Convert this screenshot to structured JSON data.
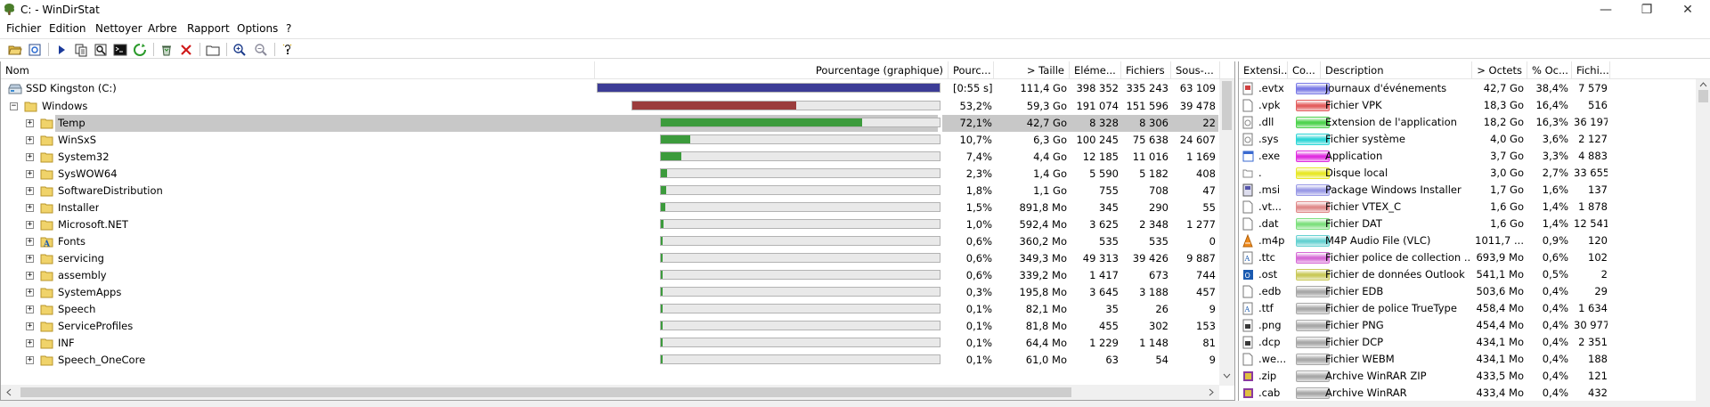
{
  "window": {
    "title": "C: - WinDirStat",
    "minimize_glyph": "—",
    "maximize_glyph": "❐",
    "close_glyph": "✕"
  },
  "menu": [
    "Fichier",
    "Edition",
    "Nettoyer",
    "Arbre",
    "Rapport",
    "Options",
    "?"
  ],
  "toolbar_icons": [
    "open-icon",
    "refresh-icon",
    "play-icon",
    "copy-icon",
    "explorer-icon",
    "command-prompt-icon",
    "refresh-selected-icon",
    "recycle-icon",
    "delete-icon",
    "new-folder-icon",
    "zoom-in-icon",
    "zoom-out-icon",
    "help-icon"
  ],
  "tree": {
    "headers": [
      "Nom",
      "Pourcentage (graphique)",
      "Pourc...",
      "> Taille",
      "Eléme...",
      "Fichiers",
      "Sous-..."
    ],
    "rows": [
      {
        "name": "SSD Kingston (C:)",
        "type": "drive",
        "level": 0,
        "fraction": 1.0,
        "fill": "#3c3c96",
        "pct": "[0:55 s]",
        "size": "111,4 Go",
        "items": "398 352",
        "files": "335 243",
        "subdirs": "63 109"
      },
      {
        "name": "Windows",
        "type": "folder",
        "level": 1,
        "fraction": 0.532,
        "fill": "#9b3c3c",
        "pct": "53,2%",
        "size": "59,3 Go",
        "items": "191 074",
        "files": "151 596",
        "subdirs": "39 478"
      },
      {
        "name": "Temp",
        "type": "folder",
        "level": 2,
        "fraction": 0.721,
        "fill": "#3c9b3c",
        "pct": "72,1%",
        "size": "42,7 Go",
        "items": "8 328",
        "files": "8 306",
        "subdirs": "22",
        "selected": true
      },
      {
        "name": "WinSxS",
        "type": "folder",
        "level": 2,
        "fraction": 0.107,
        "fill": "#3c9b3c",
        "pct": "10,7%",
        "size": "6,3 Go",
        "items": "100 245",
        "files": "75 638",
        "subdirs": "24 607"
      },
      {
        "name": "System32",
        "type": "folder",
        "level": 2,
        "fraction": 0.074,
        "fill": "#3c9b3c",
        "pct": "7,4%",
        "size": "4,4 Go",
        "items": "12 185",
        "files": "11 016",
        "subdirs": "1 169"
      },
      {
        "name": "SysWOW64",
        "type": "folder",
        "level": 2,
        "fraction": 0.023,
        "fill": "#3c9b3c",
        "pct": "2,3%",
        "size": "1,4 Go",
        "items": "5 590",
        "files": "5 182",
        "subdirs": "408"
      },
      {
        "name": "SoftwareDistribution",
        "type": "folder",
        "level": 2,
        "fraction": 0.018,
        "fill": "#3c9b3c",
        "pct": "1,8%",
        "size": "1,1 Go",
        "items": "755",
        "files": "708",
        "subdirs": "47"
      },
      {
        "name": "Installer",
        "type": "folder",
        "level": 2,
        "fraction": 0.015,
        "fill": "#3c9b3c",
        "pct": "1,5%",
        "size": "891,8 Mo",
        "items": "345",
        "files": "290",
        "subdirs": "55"
      },
      {
        "name": "Microsoft.NET",
        "type": "folder",
        "level": 2,
        "fraction": 0.01,
        "fill": "#3c9b3c",
        "pct": "1,0%",
        "size": "592,4 Mo",
        "items": "3 625",
        "files": "2 348",
        "subdirs": "1 277"
      },
      {
        "name": "Fonts",
        "type": "fonts",
        "level": 2,
        "fraction": 0.006,
        "fill": "#3c9b3c",
        "pct": "0,6%",
        "size": "360,2 Mo",
        "items": "535",
        "files": "535",
        "subdirs": "0"
      },
      {
        "name": "servicing",
        "type": "folder",
        "level": 2,
        "fraction": 0.006,
        "fill": "#3c9b3c",
        "pct": "0,6%",
        "size": "349,3 Mo",
        "items": "49 313",
        "files": "39 426",
        "subdirs": "9 887"
      },
      {
        "name": "assembly",
        "type": "folder",
        "level": 2,
        "fraction": 0.006,
        "fill": "#3c9b3c",
        "pct": "0,6%",
        "size": "339,2 Mo",
        "items": "1 417",
        "files": "673",
        "subdirs": "744"
      },
      {
        "name": "SystemApps",
        "type": "folder",
        "level": 2,
        "fraction": 0.003,
        "fill": "#3c9b3c",
        "pct": "0,3%",
        "size": "195,8 Mo",
        "items": "3 645",
        "files": "3 188",
        "subdirs": "457"
      },
      {
        "name": "Speech",
        "type": "folder",
        "level": 2,
        "fraction": 0.001,
        "fill": "#3c9b3c",
        "pct": "0,1%",
        "size": "82,1 Mo",
        "items": "35",
        "files": "26",
        "subdirs": "9"
      },
      {
        "name": "ServiceProfiles",
        "type": "folder",
        "level": 2,
        "fraction": 0.001,
        "fill": "#3c9b3c",
        "pct": "0,1%",
        "size": "81,8 Mo",
        "items": "455",
        "files": "302",
        "subdirs": "153"
      },
      {
        "name": "INF",
        "type": "folder",
        "level": 2,
        "fraction": 0.001,
        "fill": "#3c9b3c",
        "pct": "0,1%",
        "size": "64,4 Mo",
        "items": "1 229",
        "files": "1 148",
        "subdirs": "81"
      },
      {
        "name": "Speech_OneCore",
        "type": "folder",
        "level": 2,
        "fraction": 0.001,
        "fill": "#3c9b3c",
        "pct": "0,1%",
        "size": "61,0 Mo",
        "items": "63",
        "files": "54",
        "subdirs": "9"
      }
    ]
  },
  "extensions": {
    "headers": [
      "Extensi...",
      "Co...",
      "Description",
      "> Octets",
      "% Oc...",
      "Fichi..."
    ],
    "rows": [
      {
        "ext": ".evtx",
        "color": "#7a7ae6",
        "desc": "Journaux d'événements",
        "bytes": "42,7 Go",
        "pct": "38,4%",
        "files": "7 579"
      },
      {
        "ext": ".vpk",
        "color": "#e35f5f",
        "desc": "Fichier VPK",
        "bytes": "18,3 Go",
        "pct": "16,4%",
        "files": "516"
      },
      {
        "ext": ".dll",
        "color": "#4fd34f",
        "desc": "Extension de l'application",
        "bytes": "18,2 Go",
        "pct": "16,3%",
        "files": "36 197"
      },
      {
        "ext": ".sys",
        "color": "#2ed6d6",
        "desc": "Fichier système",
        "bytes": "4,0 Go",
        "pct": "3,6%",
        "files": "2 127"
      },
      {
        "ext": ".exe",
        "color": "#e02ee0",
        "desc": "Application",
        "bytes": "3,7 Go",
        "pct": "3,3%",
        "files": "4 883"
      },
      {
        "ext": ".",
        "color": "#e8e82a",
        "desc": "Disque local",
        "bytes": "3,0 Go",
        "pct": "2,7%",
        "files": "33 655"
      },
      {
        "ext": ".msi",
        "color": "#9a9ae6",
        "desc": "Package Windows Installer",
        "bytes": "1,7 Go",
        "pct": "1,6%",
        "files": "137"
      },
      {
        "ext": ".vt...",
        "color": "#e08a8a",
        "desc": "Fichier VTEX_C",
        "bytes": "1,6 Go",
        "pct": "1,4%",
        "files": "1 878"
      },
      {
        "ext": ".dat",
        "color": "#7ee07e",
        "desc": "Fichier DAT",
        "bytes": "1,6 Go",
        "pct": "1,4%",
        "files": "12 541"
      },
      {
        "ext": ".m4p",
        "color": "#66d2d2",
        "desc": "M4P Audio File (VLC)",
        "bytes": "1011,7 ...",
        "pct": "0,9%",
        "files": "120"
      },
      {
        "ext": ".ttc",
        "color": "#d66ad6",
        "desc": "Fichier police de collection ...",
        "bytes": "693,9 Mo",
        "pct": "0,6%",
        "files": "102"
      },
      {
        "ext": ".ost",
        "color": "#c9c95a",
        "desc": "Fichier de données Outlook",
        "bytes": "541,1 Mo",
        "pct": "0,5%",
        "files": "2"
      },
      {
        "ext": ".edb",
        "color": "#a8a8a8",
        "desc": "Fichier EDB",
        "bytes": "503,6 Mo",
        "pct": "0,4%",
        "files": "29"
      },
      {
        "ext": ".ttf",
        "color": "#a8a8a8",
        "desc": "Fichier de police TrueType",
        "bytes": "458,4 Mo",
        "pct": "0,4%",
        "files": "1 634"
      },
      {
        "ext": ".png",
        "color": "#a8a8a8",
        "desc": "Fichier PNG",
        "bytes": "454,4 Mo",
        "pct": "0,4%",
        "files": "30 977"
      },
      {
        "ext": ".dcp",
        "color": "#a8a8a8",
        "desc": "Fichier DCP",
        "bytes": "434,1 Mo",
        "pct": "0,4%",
        "files": "2 351"
      },
      {
        "ext": ".we...",
        "color": "#a8a8a8",
        "desc": "Fichier WEBM",
        "bytes": "434,1 Mo",
        "pct": "0,4%",
        "files": "188"
      },
      {
        "ext": ".zip",
        "color": "#a8a8a8",
        "desc": "Archive WinRAR ZIP",
        "bytes": "433,5 Mo",
        "pct": "0,4%",
        "files": "121"
      },
      {
        "ext": ".cab",
        "color": "#a8a8a8",
        "desc": "Archive WinRAR",
        "bytes": "433,4 Mo",
        "pct": "0,4%",
        "files": "432"
      }
    ]
  }
}
